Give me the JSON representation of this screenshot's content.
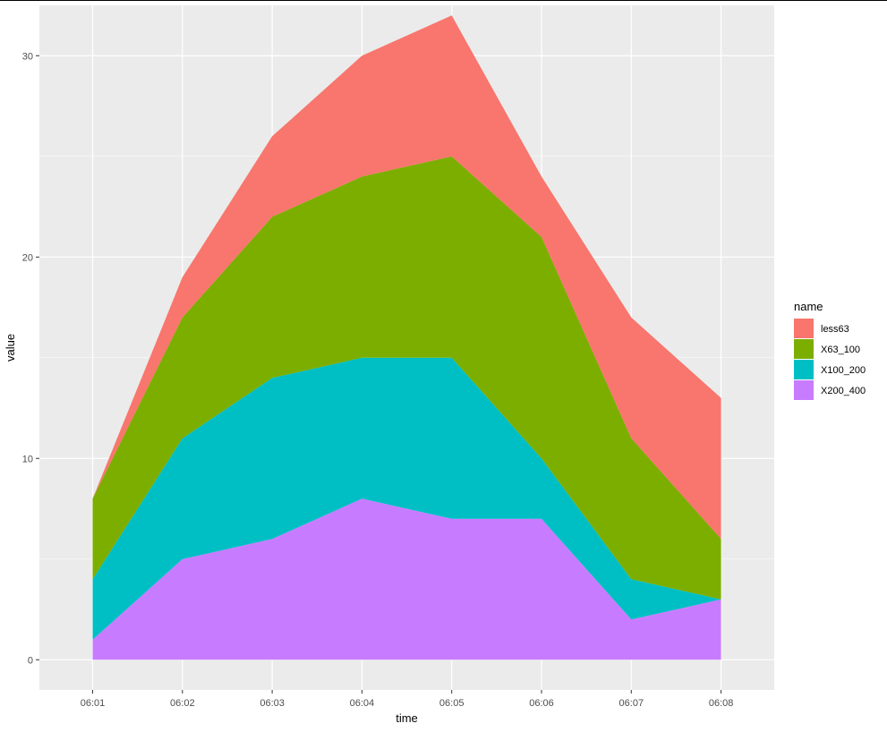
{
  "chart_data": {
    "type": "area",
    "stacked": true,
    "x": [
      "06:01",
      "06:02",
      "06:03",
      "06:04",
      "06:05",
      "06:06",
      "06:07",
      "06:08"
    ],
    "xlabel": "time",
    "ylabel": "value",
    "ylim": [
      -1.5,
      32.5
    ],
    "yticks": [
      0,
      10,
      20,
      30
    ],
    "grid": true,
    "legend": {
      "title": "name",
      "position": "right"
    },
    "series": [
      {
        "name": "less63",
        "color": "#F8766D",
        "values": [
          0,
          2,
          4,
          6,
          7,
          3,
          6,
          7
        ]
      },
      {
        "name": "X63_100",
        "color": "#7CAE00",
        "values": [
          4,
          6,
          8,
          9,
          10,
          11,
          7,
          3
        ]
      },
      {
        "name": "X100_200",
        "color": "#00BFC4",
        "values": [
          3,
          6,
          8,
          7,
          8,
          3,
          2,
          0
        ]
      },
      {
        "name": "X200_400",
        "color": "#C77CFF",
        "values": [
          1,
          5,
          6,
          8,
          7,
          7,
          2,
          3
        ]
      }
    ]
  }
}
